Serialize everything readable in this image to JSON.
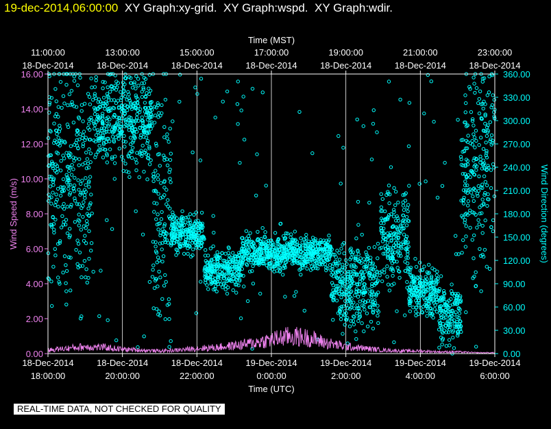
{
  "header": {
    "timestamp": "19-dec-2014,06:00:00",
    "titles": "XY Graph:xy-grid.  XY Graph:wspd.  XY Graph:wdir."
  },
  "notice": "REAL-TIME DATA, NOT CHECKED FOR QUALITY",
  "colors": {
    "background": "#000000",
    "wspd": "#ee82ee",
    "wdir": "#00ffff",
    "grid": "#ffffff",
    "timestamp": "#ffff00"
  },
  "chart_data": {
    "type": "scatter",
    "top_axis_label": "Time (MST)",
    "bottom_axis_label": "Time (UTC)",
    "left_axis_label": "Wind Speed (m/s)",
    "right_axis_label": "Wind Direction (degrees)",
    "x_range_utc_hours": [
      18,
      30
    ],
    "top_ticks": [
      {
        "time": "11:00:00",
        "date": "18-Dec-2014"
      },
      {
        "time": "13:00:00",
        "date": "18-Dec-2014"
      },
      {
        "time": "15:00:00",
        "date": "18-Dec-2014"
      },
      {
        "time": "17:00:00",
        "date": "18-Dec-2014"
      },
      {
        "time": "19:00:00",
        "date": "18-Dec-2014"
      },
      {
        "time": "21:00:00",
        "date": "18-Dec-2014"
      },
      {
        "time": "23:00:00",
        "date": "18-Dec-2014"
      }
    ],
    "bottom_ticks": [
      {
        "date": "18-Dec-2014",
        "time": "18:00:00"
      },
      {
        "date": "18-Dec-2014",
        "time": "20:00:00"
      },
      {
        "date": "18-Dec-2014",
        "time": "22:00:00"
      },
      {
        "date": "19-Dec-2014",
        "time": "0:00:00"
      },
      {
        "date": "19-Dec-2014",
        "time": "2:00:00"
      },
      {
        "date": "19-Dec-2014",
        "time": "4:00:00"
      },
      {
        "date": "19-Dec-2014",
        "time": "6:00:00"
      }
    ],
    "left_ylim": [
      0,
      16
    ],
    "left_ticks": [
      "0.00",
      "2.00",
      "4.00",
      "6.00",
      "8.00",
      "10.00",
      "12.00",
      "14.00",
      "16.00"
    ],
    "right_ylim": [
      0,
      360
    ],
    "right_ticks": [
      "0.00",
      "30.00",
      "60.00",
      "90.00",
      "120.00",
      "150.00",
      "180.00",
      "210.00",
      "240.00",
      "270.00",
      "300.00",
      "330.00",
      "360.00"
    ],
    "grid": true,
    "series": [
      {
        "name": "wspd",
        "axis": "left",
        "style": "line",
        "points": [
          [
            18.0,
            0.2
          ],
          [
            18.5,
            0.3
          ],
          [
            19.0,
            0.4
          ],
          [
            19.5,
            0.35
          ],
          [
            20.0,
            0.25
          ],
          [
            20.5,
            0.2
          ],
          [
            21.0,
            0.15
          ],
          [
            21.5,
            0.2
          ],
          [
            22.0,
            0.3
          ],
          [
            22.5,
            0.35
          ],
          [
            23.0,
            0.45
          ],
          [
            23.5,
            0.6
          ],
          [
            24.0,
            0.8
          ],
          [
            24.5,
            1.0
          ],
          [
            25.0,
            0.9
          ],
          [
            25.5,
            0.6
          ],
          [
            26.0,
            0.4
          ],
          [
            26.5,
            0.3
          ],
          [
            27.0,
            0.2
          ],
          [
            27.5,
            0.15
          ],
          [
            28.0,
            0.15
          ],
          [
            28.5,
            0.1
          ],
          [
            29.0,
            0.1
          ],
          [
            29.5,
            0.05
          ],
          [
            30.0,
            0.05
          ]
        ]
      },
      {
        "name": "wdir",
        "axis": "right",
        "style": "markers",
        "segments": [
          {
            "t0": 18.0,
            "t1": 19.2,
            "center": 230,
            "spread": 130
          },
          {
            "t0": 19.2,
            "t1": 20.8,
            "center": 300,
            "spread": 60
          },
          {
            "t0": 20.8,
            "t1": 21.3,
            "center": 200,
            "spread": 150
          },
          {
            "t0": 21.3,
            "t1": 22.2,
            "center": 155,
            "spread": 25
          },
          {
            "t0": 22.2,
            "t1": 23.2,
            "center": 110,
            "spread": 25
          },
          {
            "t0": 23.2,
            "t1": 25.6,
            "center": 130,
            "spread": 22
          },
          {
            "t0": 25.6,
            "t1": 26.9,
            "center": 90,
            "spread": 55
          },
          {
            "t0": 26.9,
            "t1": 27.7,
            "center": 150,
            "spread": 60
          },
          {
            "t0": 27.7,
            "t1": 28.5,
            "center": 80,
            "spread": 30
          },
          {
            "t0": 28.5,
            "t1": 29.1,
            "center": 50,
            "spread": 40
          },
          {
            "t0": 29.1,
            "t1": 30.0,
            "center": 240,
            "spread": 130
          }
        ]
      }
    ]
  }
}
